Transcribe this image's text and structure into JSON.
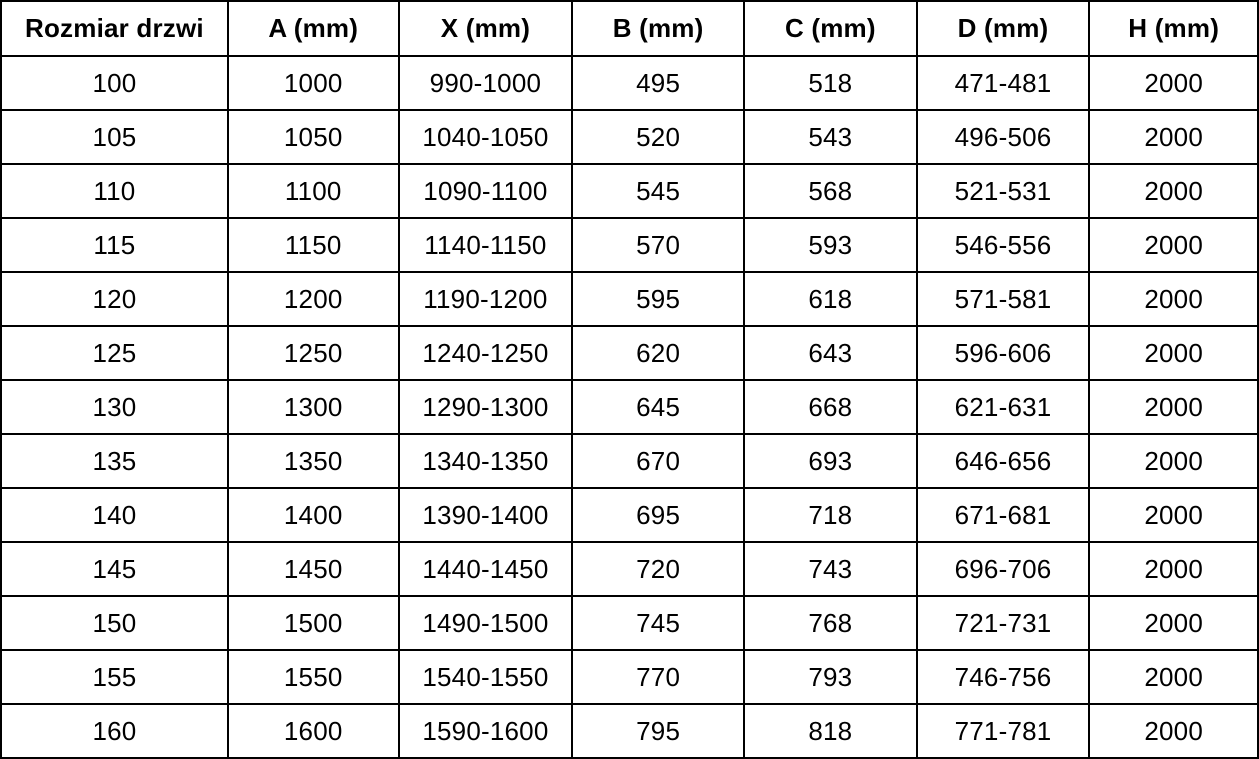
{
  "table": {
    "columns": [
      {
        "label": "Rozmiar drzwi"
      },
      {
        "label": "A (mm)"
      },
      {
        "label": "X (mm)"
      },
      {
        "label": "B (mm)"
      },
      {
        "label": "C (mm)"
      },
      {
        "label": "D (mm)"
      },
      {
        "label": "H (mm)"
      }
    ],
    "rows": [
      [
        "100",
        "1000",
        "990-1000",
        "495",
        "518",
        "471-481",
        "2000"
      ],
      [
        "105",
        "1050",
        "1040-1050",
        "520",
        "543",
        "496-506",
        "2000"
      ],
      [
        "110",
        "1100",
        "1090-1100",
        "545",
        "568",
        "521-531",
        "2000"
      ],
      [
        "115",
        "1150",
        "1140-1150",
        "570",
        "593",
        "546-556",
        "2000"
      ],
      [
        "120",
        "1200",
        "1190-1200",
        "595",
        "618",
        "571-581",
        "2000"
      ],
      [
        "125",
        "1250",
        "1240-1250",
        "620",
        "643",
        "596-606",
        "2000"
      ],
      [
        "130",
        "1300",
        "1290-1300",
        "645",
        "668",
        "621-631",
        "2000"
      ],
      [
        "135",
        "1350",
        "1340-1350",
        "670",
        "693",
        "646-656",
        "2000"
      ],
      [
        "140",
        "1400",
        "1390-1400",
        "695",
        "718",
        "671-681",
        "2000"
      ],
      [
        "145",
        "1450",
        "1440-1450",
        "720",
        "743",
        "696-706",
        "2000"
      ],
      [
        "150",
        "1500",
        "1490-1500",
        "745",
        "768",
        "721-731",
        "2000"
      ],
      [
        "155",
        "1550",
        "1540-1550",
        "770",
        "793",
        "746-756",
        "2000"
      ],
      [
        "160",
        "1600",
        "1590-1600",
        "795",
        "818",
        "771-781",
        "2000"
      ]
    ]
  },
  "chart_data": {
    "type": "table",
    "title": "",
    "columns": [
      "Rozmiar drzwi",
      "A (mm)",
      "X (mm)",
      "B (mm)",
      "C (mm)",
      "D (mm)",
      "H (mm)"
    ],
    "rows": [
      [
        "100",
        "1000",
        "990-1000",
        "495",
        "518",
        "471-481",
        "2000"
      ],
      [
        "105",
        "1050",
        "1040-1050",
        "520",
        "543",
        "496-506",
        "2000"
      ],
      [
        "110",
        "1100",
        "1090-1100",
        "545",
        "568",
        "521-531",
        "2000"
      ],
      [
        "115",
        "1150",
        "1140-1150",
        "570",
        "593",
        "546-556",
        "2000"
      ],
      [
        "120",
        "1200",
        "1190-1200",
        "595",
        "618",
        "571-581",
        "2000"
      ],
      [
        "125",
        "1250",
        "1240-1250",
        "620",
        "643",
        "596-606",
        "2000"
      ],
      [
        "130",
        "1300",
        "1290-1300",
        "645",
        "668",
        "621-631",
        "2000"
      ],
      [
        "135",
        "1350",
        "1340-1350",
        "670",
        "693",
        "646-656",
        "2000"
      ],
      [
        "140",
        "1400",
        "1390-1400",
        "695",
        "718",
        "671-681",
        "2000"
      ],
      [
        "145",
        "1450",
        "1440-1450",
        "720",
        "743",
        "696-706",
        "2000"
      ],
      [
        "150",
        "1500",
        "1490-1500",
        "745",
        "768",
        "721-731",
        "2000"
      ],
      [
        "155",
        "1550",
        "1540-1550",
        "770",
        "793",
        "746-756",
        "2000"
      ],
      [
        "160",
        "1600",
        "1590-1600",
        "795",
        "818",
        "771-781",
        "2000"
      ]
    ]
  },
  "colors": {
    "border": "#000000",
    "text": "#000000",
    "background": "#ffffff"
  }
}
